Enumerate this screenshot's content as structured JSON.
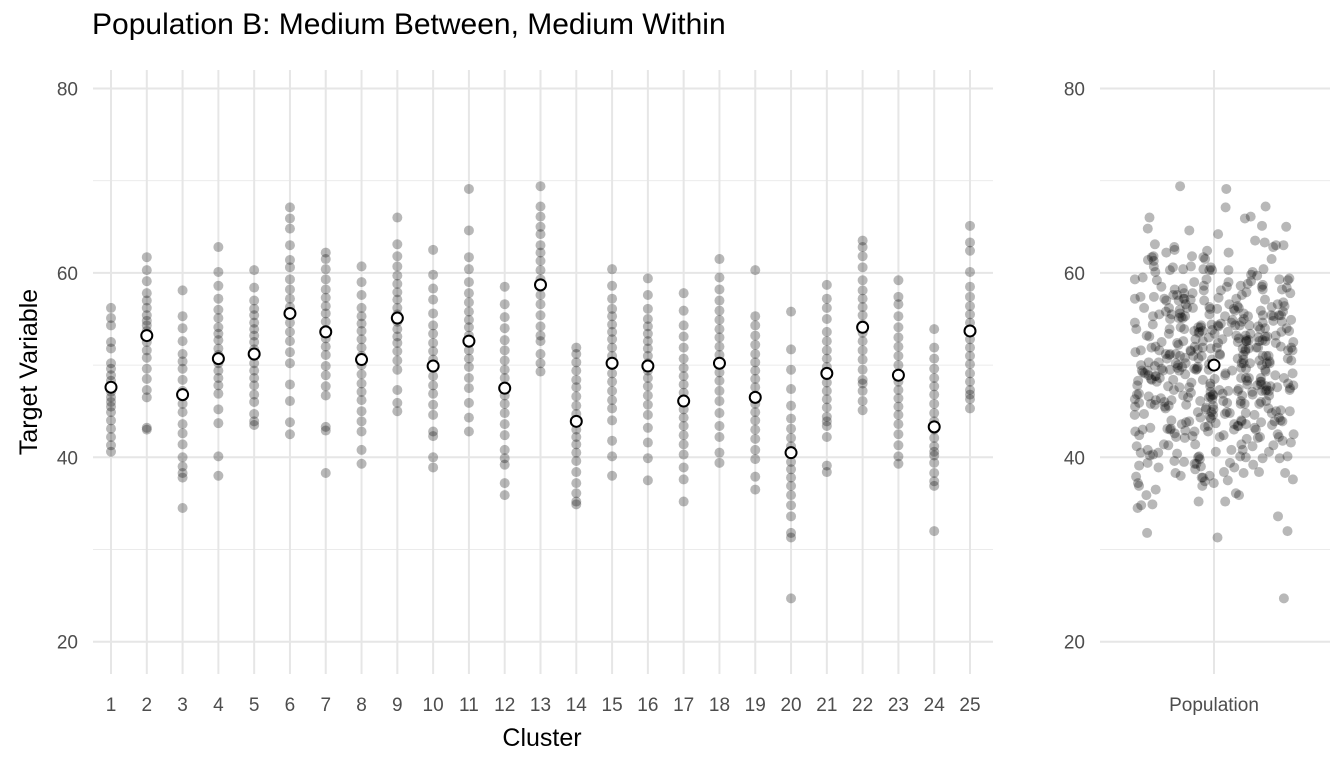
{
  "chart_data": [
    {
      "type": "scatter",
      "title": "Population B: Medium Between, Medium Within",
      "xlabel": "Cluster",
      "ylabel": "Target Variable",
      "ylim": [
        16.5,
        82
      ],
      "yticks": [
        20,
        40,
        60,
        80
      ],
      "grid": true,
      "point_color": "#000000",
      "point_opacity": 0.28,
      "mean_marker_fill": "#ffffff",
      "mean_marker_stroke": "#000000",
      "categories": [
        "1",
        "2",
        "3",
        "4",
        "5",
        "6",
        "7",
        "8",
        "9",
        "10",
        "11",
        "12",
        "13",
        "14",
        "15",
        "16",
        "17",
        "18",
        "19",
        "20",
        "21",
        "22",
        "23",
        "24",
        "25"
      ],
      "cluster_means": [
        47.6,
        53.2,
        46.8,
        50.7,
        51.2,
        55.6,
        53.6,
        50.6,
        55.1,
        49.9,
        52.6,
        47.5,
        58.7,
        43.9,
        50.2,
        49.9,
        46.1,
        50.2,
        46.5,
        40.5,
        49.1,
        54.1,
        48.9,
        43.3,
        53.7
      ],
      "cluster_points": [
        [
          56.2,
          55.1,
          54.3,
          52.5,
          51.8,
          50.2,
          49.6,
          48.9,
          48.3,
          47.7,
          47.1,
          46.5,
          46.0,
          45.5,
          44.9,
          44.0,
          43.1,
          42.2,
          41.3,
          40.6
        ],
        [
          61.7,
          60.3,
          59.1,
          57.8,
          57.0,
          56.2,
          55.4,
          54.8,
          54.3,
          53.7,
          53.1,
          52.5,
          51.6,
          50.8,
          49.6,
          48.5,
          47.3,
          46.5,
          43.2,
          43.0
        ],
        [
          58.1,
          55.3,
          54.0,
          52.6,
          51.2,
          50.4,
          49.6,
          48.4,
          47.2,
          46.6,
          45.8,
          44.9,
          43.6,
          42.6,
          41.4,
          40.0,
          39.0,
          38.3,
          37.8,
          34.5
        ],
        [
          62.8,
          60.1,
          58.6,
          57.2,
          56.0,
          55.1,
          54.1,
          53.4,
          52.7,
          51.8,
          51.1,
          50.2,
          49.4,
          48.6,
          47.8,
          46.9,
          45.2,
          43.7,
          40.1,
          38.0
        ],
        [
          60.3,
          58.4,
          57.0,
          56.1,
          55.4,
          54.6,
          53.9,
          53.2,
          52.5,
          51.7,
          51.0,
          50.2,
          49.4,
          48.6,
          47.8,
          46.8,
          46.0,
          44.7,
          43.9,
          43.5
        ],
        [
          67.1,
          65.9,
          64.8,
          63.0,
          61.4,
          60.6,
          59.3,
          58.2,
          57.2,
          56.3,
          55.5,
          54.6,
          53.6,
          52.6,
          51.4,
          50.2,
          47.9,
          46.1,
          43.8,
          42.5
        ],
        [
          62.2,
          61.5,
          60.4,
          59.3,
          58.2,
          57.3,
          56.4,
          55.6,
          54.7,
          53.8,
          52.9,
          52.0,
          51.1,
          49.9,
          48.9,
          47.7,
          46.7,
          43.3,
          42.9,
          38.3
        ],
        [
          60.7,
          59.0,
          57.6,
          56.2,
          55.3,
          54.5,
          53.7,
          52.8,
          51.9,
          51.0,
          50.0,
          49.0,
          48.0,
          47.1,
          46.2,
          45.0,
          43.9,
          42.8,
          40.8,
          39.3
        ],
        [
          66.0,
          63.1,
          61.8,
          60.7,
          59.7,
          58.8,
          57.9,
          57.1,
          56.2,
          55.5,
          54.7,
          53.9,
          53.1,
          52.4,
          51.5,
          50.5,
          49.5,
          47.3,
          45.9,
          45.0
        ],
        [
          62.5,
          59.8,
          58.3,
          57.1,
          55.6,
          54.3,
          53.4,
          52.4,
          51.5,
          50.6,
          49.7,
          48.8,
          47.8,
          46.9,
          45.7,
          44.6,
          42.8,
          42.3,
          40.0,
          38.9
        ],
        [
          69.1,
          64.6,
          61.7,
          60.4,
          59.0,
          57.8,
          56.8,
          55.8,
          54.9,
          54.1,
          53.2,
          52.4,
          51.6,
          50.7,
          49.8,
          48.6,
          47.5,
          45.9,
          44.3,
          42.8
        ],
        [
          58.5,
          56.6,
          55.2,
          54.0,
          52.7,
          51.6,
          50.5,
          49.5,
          48.6,
          47.6,
          46.7,
          45.8,
          44.8,
          43.6,
          42.4,
          40.8,
          39.9,
          39.2,
          37.2,
          35.9
        ],
        [
          69.4,
          67.2,
          66.1,
          65.0,
          64.2,
          63.0,
          62.2,
          61.3,
          60.3,
          59.3,
          58.5,
          57.6,
          56.6,
          55.4,
          54.2,
          53.2,
          52.6,
          51.2,
          50.2,
          49.3
        ],
        [
          51.9,
          51.2,
          50.3,
          49.4,
          48.4,
          47.6,
          46.6,
          45.6,
          44.7,
          43.8,
          43.0,
          42.2,
          41.4,
          40.5,
          39.6,
          38.4,
          37.2,
          36.1,
          35.2,
          34.9
        ],
        [
          60.4,
          58.6,
          57.2,
          56.1,
          55.3,
          54.4,
          53.6,
          52.8,
          51.9,
          51.0,
          50.0,
          49.1,
          48.2,
          47.2,
          46.2,
          45.3,
          44.0,
          41.8,
          40.1,
          38.0
        ],
        [
          59.4,
          57.6,
          56.1,
          55.0,
          54.2,
          53.4,
          52.6,
          51.8,
          51.0,
          50.2,
          49.4,
          48.6,
          47.7,
          46.7,
          45.7,
          44.6,
          43.2,
          41.6,
          39.9,
          37.5
        ],
        [
          57.8,
          55.9,
          54.3,
          53.1,
          51.9,
          50.7,
          49.7,
          48.8,
          47.9,
          47.0,
          46.1,
          45.2,
          44.3,
          43.4,
          42.4,
          41.4,
          40.3,
          38.9,
          37.6,
          35.2
        ],
        [
          61.5,
          59.5,
          58.2,
          57.0,
          55.9,
          54.9,
          53.9,
          53.0,
          52.0,
          51.1,
          50.2,
          49.2,
          48.3,
          47.2,
          46.1,
          44.8,
          43.4,
          42.2,
          40.5,
          39.4
        ],
        [
          60.3,
          55.3,
          54.3,
          53.2,
          52.2,
          51.2,
          50.3,
          49.4,
          48.5,
          47.6,
          46.7,
          45.8,
          44.9,
          44.0,
          43.0,
          42.0,
          40.8,
          39.8,
          37.9,
          36.5
        ],
        [
          55.8,
          51.7,
          49.5,
          47.4,
          45.6,
          44.2,
          43.1,
          42.1,
          41.2,
          40.4,
          39.5,
          38.7,
          37.8,
          36.9,
          35.9,
          34.8,
          33.6,
          31.8,
          31.3,
          24.7
        ],
        [
          58.7,
          57.2,
          56.2,
          55.0,
          53.6,
          52.6,
          51.6,
          50.7,
          49.8,
          48.9,
          48.1,
          47.2,
          46.3,
          45.4,
          44.4,
          43.4,
          42.2,
          39.1,
          38.4,
          43.9
        ],
        [
          63.5,
          62.8,
          61.8,
          60.6,
          59.2,
          58.1,
          57.2,
          56.3,
          55.4,
          54.4,
          53.5,
          52.6,
          51.6,
          50.6,
          49.5,
          48.4,
          47.2,
          46.1,
          45.1,
          48.0
        ],
        [
          59.2,
          57.4,
          56.6,
          55.3,
          54.1,
          53.0,
          52.0,
          51.0,
          50.0,
          49.1,
          48.2,
          47.3,
          46.4,
          45.5,
          44.6,
          43.6,
          42.5,
          41.3,
          40.1,
          39.3
        ],
        [
          53.9,
          51.9,
          50.7,
          49.6,
          48.6,
          47.7,
          46.8,
          45.8,
          44.8,
          43.9,
          43.0,
          42.1,
          41.2,
          40.2,
          39.4,
          38.3,
          37.4,
          36.9,
          32.0,
          40.6
        ],
        [
          65.1,
          63.3,
          62.4,
          60.1,
          58.5,
          57.4,
          56.4,
          55.5,
          54.6,
          53.7,
          52.8,
          51.9,
          51.0,
          50.1,
          49.1,
          48.2,
          47.3,
          46.3,
          45.3,
          46.8
        ]
      ]
    },
    {
      "type": "scatter",
      "categories": [
        "Population"
      ],
      "ylim": [
        16.5,
        82
      ],
      "yticks": [
        20,
        40,
        60,
        80
      ],
      "grid": true,
      "population_mean": 50.0
    }
  ]
}
